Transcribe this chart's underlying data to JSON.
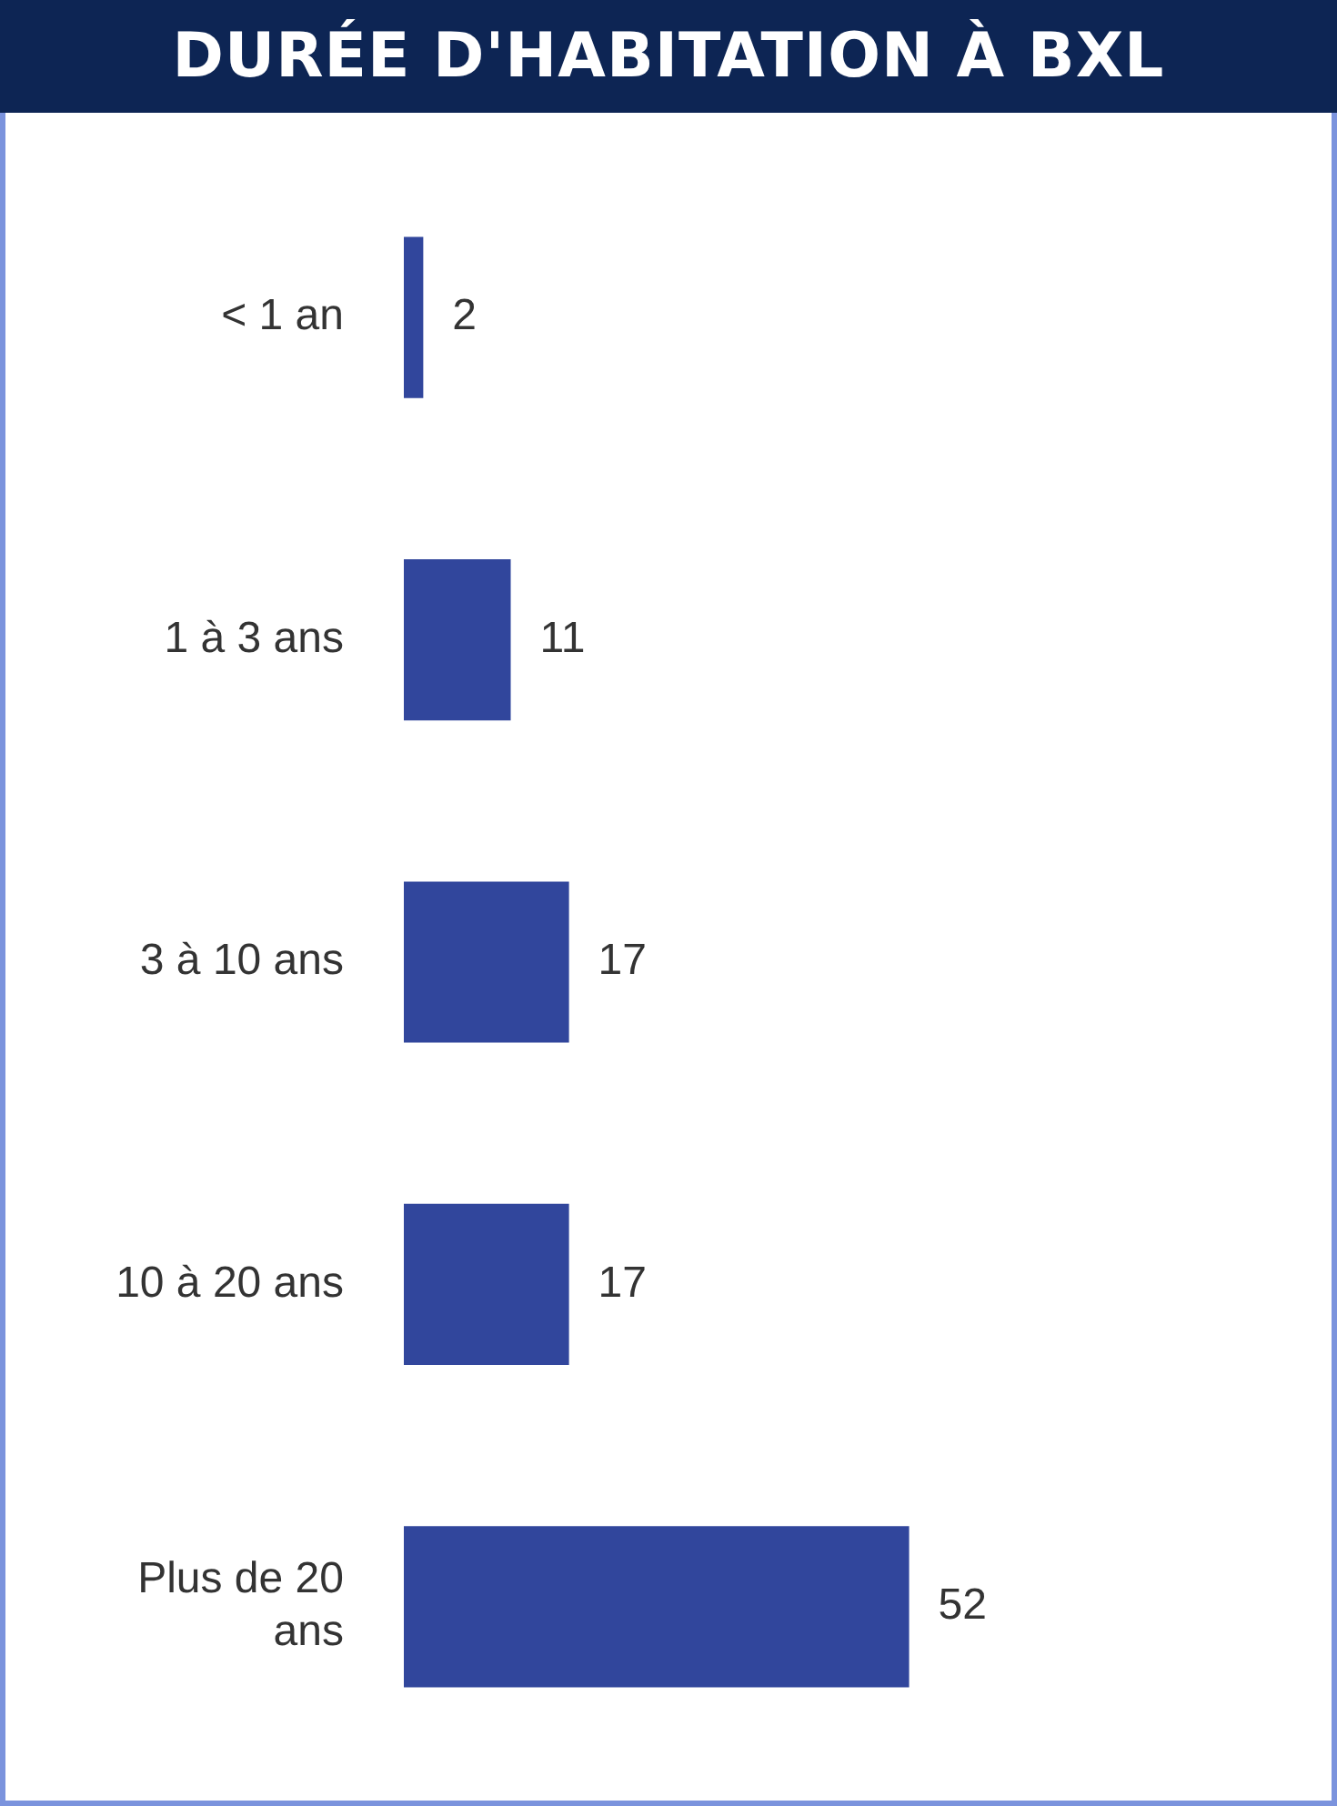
{
  "chart_data": {
    "type": "bar",
    "orientation": "horizontal",
    "title": "DURÉE D'HABITATION À BXL",
    "categories": [
      "< 1 an",
      "1 à 3 ans",
      "3 à 10 ans",
      "10 à 20 ans",
      "Plus de 20 ans"
    ],
    "values": [
      2,
      11,
      17,
      17,
      52
    ],
    "color": "#31469c",
    "data_labels": true,
    "legend": false
  }
}
